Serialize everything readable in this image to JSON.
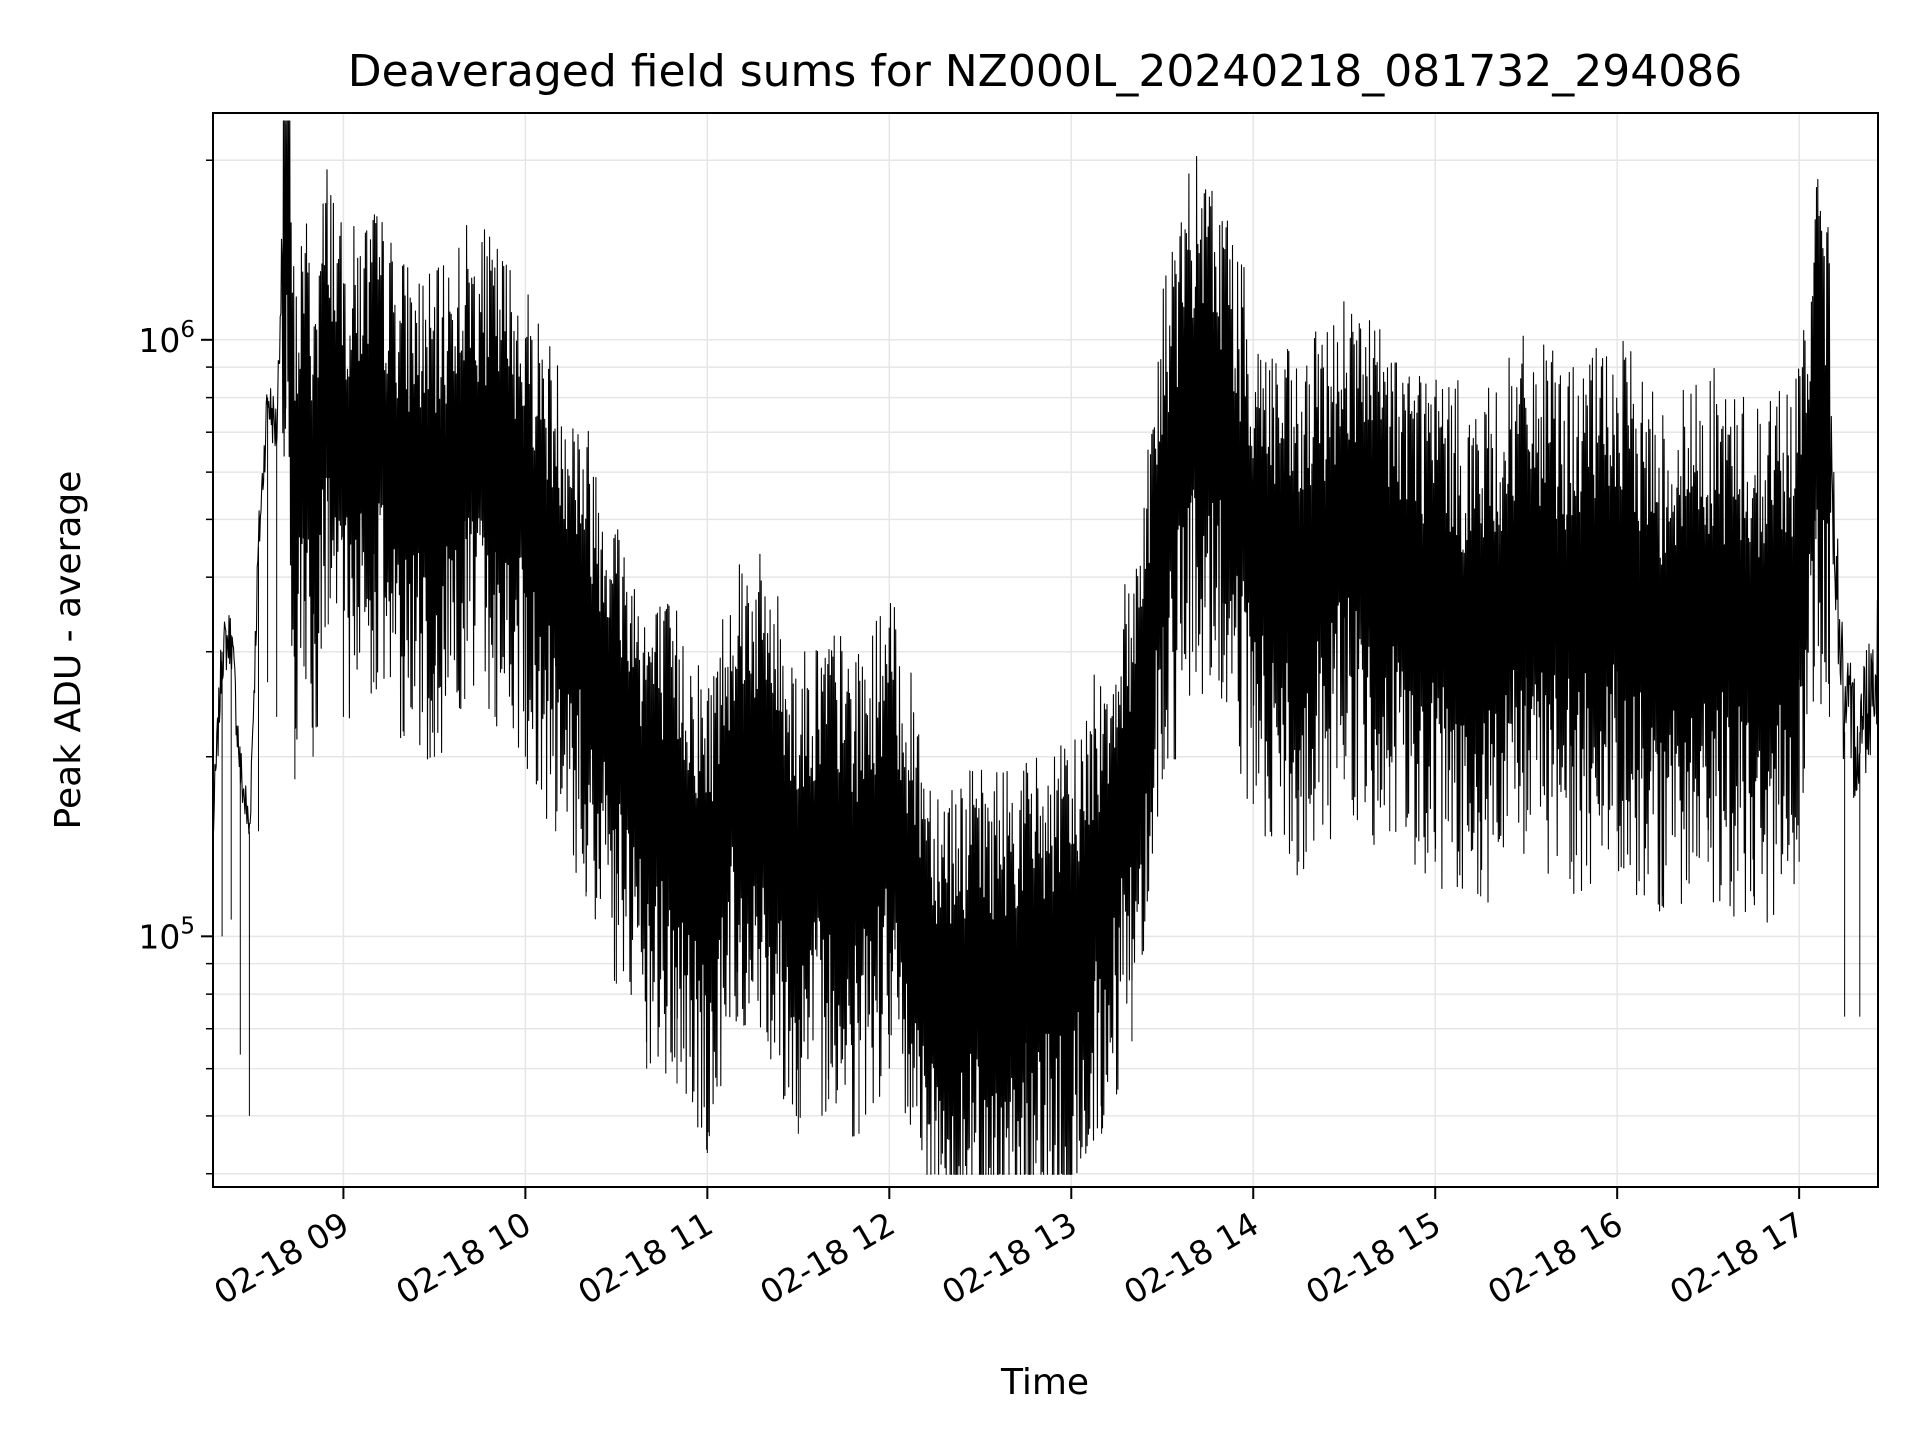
{
  "chart_data": {
    "type": "line",
    "title": "Deaveraged field sums for NZ000L_20240218_081732_294086",
    "xlabel": "Time",
    "ylabel": "Peak ADU - average",
    "y_scale": "log",
    "ylim": [
      38000,
      2400000
    ],
    "xlim": [
      "2024-02-18 08:17",
      "2024-02-18 17:26"
    ],
    "grid": true,
    "line_color": "#000000",
    "grid_color": "#e6e6e6",
    "x_ticks": [
      {
        "value": "2024-02-18 09:00",
        "label": "02-18 09"
      },
      {
        "value": "2024-02-18 10:00",
        "label": "02-18 10"
      },
      {
        "value": "2024-02-18 11:00",
        "label": "02-18 11"
      },
      {
        "value": "2024-02-18 12:00",
        "label": "02-18 12"
      },
      {
        "value": "2024-02-18 13:00",
        "label": "02-18 13"
      },
      {
        "value": "2024-02-18 14:00",
        "label": "02-18 14"
      },
      {
        "value": "2024-02-18 15:00",
        "label": "02-18 15"
      },
      {
        "value": "2024-02-18 16:00",
        "label": "02-18 16"
      },
      {
        "value": "2024-02-18 17:00",
        "label": "02-18 17"
      }
    ],
    "y_ticks": [
      {
        "value": 100000,
        "base": "10",
        "exp": "5"
      },
      {
        "value": 1000000,
        "base": "10",
        "exp": "6"
      }
    ],
    "series": [
      {
        "x": [
          "2024-02-18 08:17",
          "2024-02-18 08:20",
          "2024-02-18 08:23",
          "2024-02-18 08:26",
          "2024-02-18 08:29",
          "2024-02-18 08:32",
          "2024-02-18 08:35",
          "2024-02-18 08:38",
          "2024-02-18 08:41",
          "2024-02-18 08:44",
          "2024-02-18 08:47",
          "2024-02-18 08:50",
          "2024-02-18 08:55",
          "2024-02-18 09:00",
          "2024-02-18 09:10",
          "2024-02-18 09:20",
          "2024-02-18 09:30",
          "2024-02-18 09:40",
          "2024-02-18 09:50",
          "2024-02-18 10:00",
          "2024-02-18 10:10",
          "2024-02-18 10:20",
          "2024-02-18 10:30",
          "2024-02-18 10:40",
          "2024-02-18 10:50",
          "2024-02-18 11:00",
          "2024-02-18 11:10",
          "2024-02-18 11:20",
          "2024-02-18 11:30",
          "2024-02-18 11:40",
          "2024-02-18 11:50",
          "2024-02-18 12:00",
          "2024-02-18 12:15",
          "2024-02-18 12:30",
          "2024-02-18 12:45",
          "2024-02-18 13:00",
          "2024-02-18 13:10",
          "2024-02-18 13:20",
          "2024-02-18 13:30",
          "2024-02-18 13:40",
          "2024-02-18 13:50",
          "2024-02-18 14:00",
          "2024-02-18 14:15",
          "2024-02-18 14:30",
          "2024-02-18 14:45",
          "2024-02-18 15:00",
          "2024-02-18 15:15",
          "2024-02-18 15:30",
          "2024-02-18 15:45",
          "2024-02-18 16:00",
          "2024-02-18 16:15",
          "2024-02-18 16:30",
          "2024-02-18 16:45",
          "2024-02-18 17:00",
          "2024-02-18 17:05",
          "2024-02-18 17:10",
          "2024-02-18 17:15",
          "2024-02-18 17:20",
          "2024-02-18 17:26"
        ],
        "values": [
          150000,
          300000,
          320000,
          190000,
          150000,
          450000,
          800000,
          700000,
          2300000,
          550000,
          850000,
          600000,
          1000000,
          700000,
          800000,
          650000,
          600000,
          750000,
          700000,
          600000,
          450000,
          350000,
          250000,
          180000,
          170000,
          130000,
          220000,
          200000,
          140000,
          160000,
          140000,
          180000,
          90000,
          90000,
          95000,
          100000,
          140000,
          200000,
          550000,
          900000,
          800000,
          500000,
          400000,
          550000,
          450000,
          400000,
          350000,
          450000,
          400000,
          450000,
          350000,
          400000,
          350000,
          400000,
          850000,
          700000,
          220000,
          220000,
          300000
        ]
      }
    ]
  }
}
